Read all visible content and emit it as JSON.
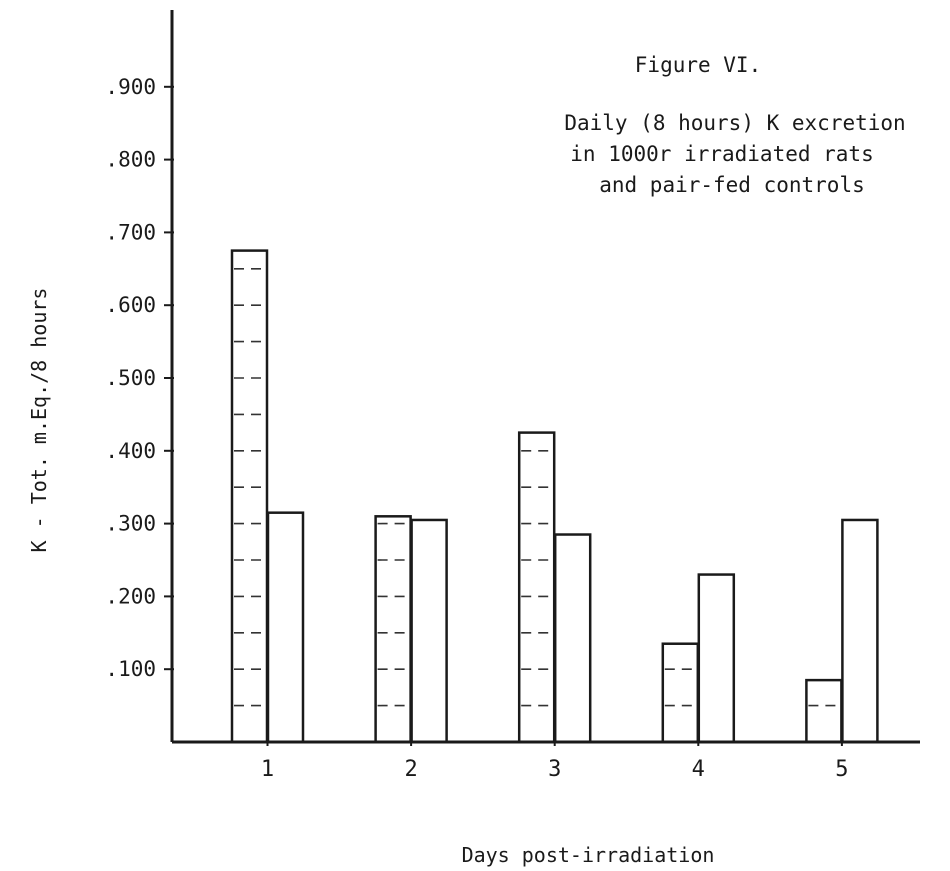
{
  "chart_data": {
    "type": "bar",
    "title": "Figure VI.",
    "subtitle_lines": [
      "Daily (8 hours) K excretion",
      "in 1000r irradiated rats",
      "and pair-fed controls"
    ],
    "xlabel": "Days post-irradiation",
    "ylabel": "K - Tot. m.Eq./8 hours",
    "categories": [
      "1",
      "2",
      "3",
      "4",
      "5"
    ],
    "y_tick_values": [
      0.1,
      0.2,
      0.3,
      0.4,
      0.5,
      0.6,
      0.7,
      0.8,
      0.9
    ],
    "y_tick_labels": [
      ".100",
      ".200",
      ".300",
      ".400",
      ".500",
      ".600",
      ".700",
      ".800",
      ".900"
    ],
    "ylim": [
      0,
      1.0
    ],
    "grid": false,
    "legend": "none",
    "series": [
      {
        "style": "hatched",
        "values": [
          0.675,
          0.31,
          0.425,
          0.135,
          0.085
        ]
      },
      {
        "style": "plain",
        "values": [
          0.315,
          0.305,
          0.285,
          0.23,
          0.305
        ]
      }
    ]
  }
}
